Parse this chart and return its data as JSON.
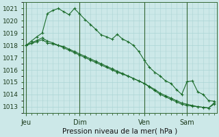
{
  "title": "Pression niveau de la mer( hPa )",
  "bg_color": "#cce8e8",
  "grid_color": "#aad4d4",
  "line_color": "#1a6b2a",
  "vline_color": "#336633",
  "ylim": [
    1012.5,
    1021.5
  ],
  "yticks": [
    1013,
    1014,
    1015,
    1016,
    1017,
    1018,
    1019,
    1020,
    1021
  ],
  "xtick_labels": [
    "Jeu",
    "Dim",
    "Ven",
    "Sam"
  ],
  "xtick_positions": [
    0,
    10,
    22,
    30
  ],
  "vlines": [
    0,
    10,
    22,
    30
  ],
  "n_points": 36,
  "series": [
    [
      1018.0,
      1018.35,
      1018.7,
      1019.0,
      1020.6,
      1020.85,
      1021.0,
      1020.75,
      1020.5,
      1021.0,
      1020.55,
      1020.1,
      1019.7,
      1019.3,
      1018.85,
      1018.7,
      1018.5,
      1018.9,
      1018.5,
      1018.3,
      1018.0,
      1017.5,
      1016.8,
      1016.2,
      1015.8,
      1015.5,
      1015.1,
      1014.9,
      1014.4,
      1014.0,
      1015.05,
      1015.1,
      1014.2,
      1014.0,
      1013.5,
      1013.45
    ],
    [
      1018.0,
      1018.15,
      1018.3,
      1018.45,
      1018.2,
      1018.1,
      1018.0,
      1017.9,
      1017.7,
      1017.5,
      1017.3,
      1017.1,
      1016.9,
      1016.7,
      1016.5,
      1016.3,
      1016.1,
      1015.9,
      1015.7,
      1015.5,
      1015.3,
      1015.1,
      1014.9,
      1014.6,
      1014.3,
      1014.0,
      1013.8,
      1013.6,
      1013.4,
      1013.2,
      1013.1,
      1013.05,
      1013.0,
      1012.95,
      1012.9,
      1013.3
    ],
    [
      1018.0,
      1018.2,
      1018.4,
      1018.6,
      1018.35,
      1018.2,
      1018.0,
      1017.8,
      1017.6,
      1017.4,
      1017.2,
      1017.0,
      1016.8,
      1016.6,
      1016.4,
      1016.2,
      1016.0,
      1015.8,
      1015.65,
      1015.5,
      1015.3,
      1015.1,
      1014.9,
      1014.65,
      1014.4,
      1014.1,
      1013.9,
      1013.7,
      1013.5,
      1013.3,
      1013.2,
      1013.1,
      1013.0,
      1012.95,
      1012.9,
      1013.2
    ]
  ]
}
